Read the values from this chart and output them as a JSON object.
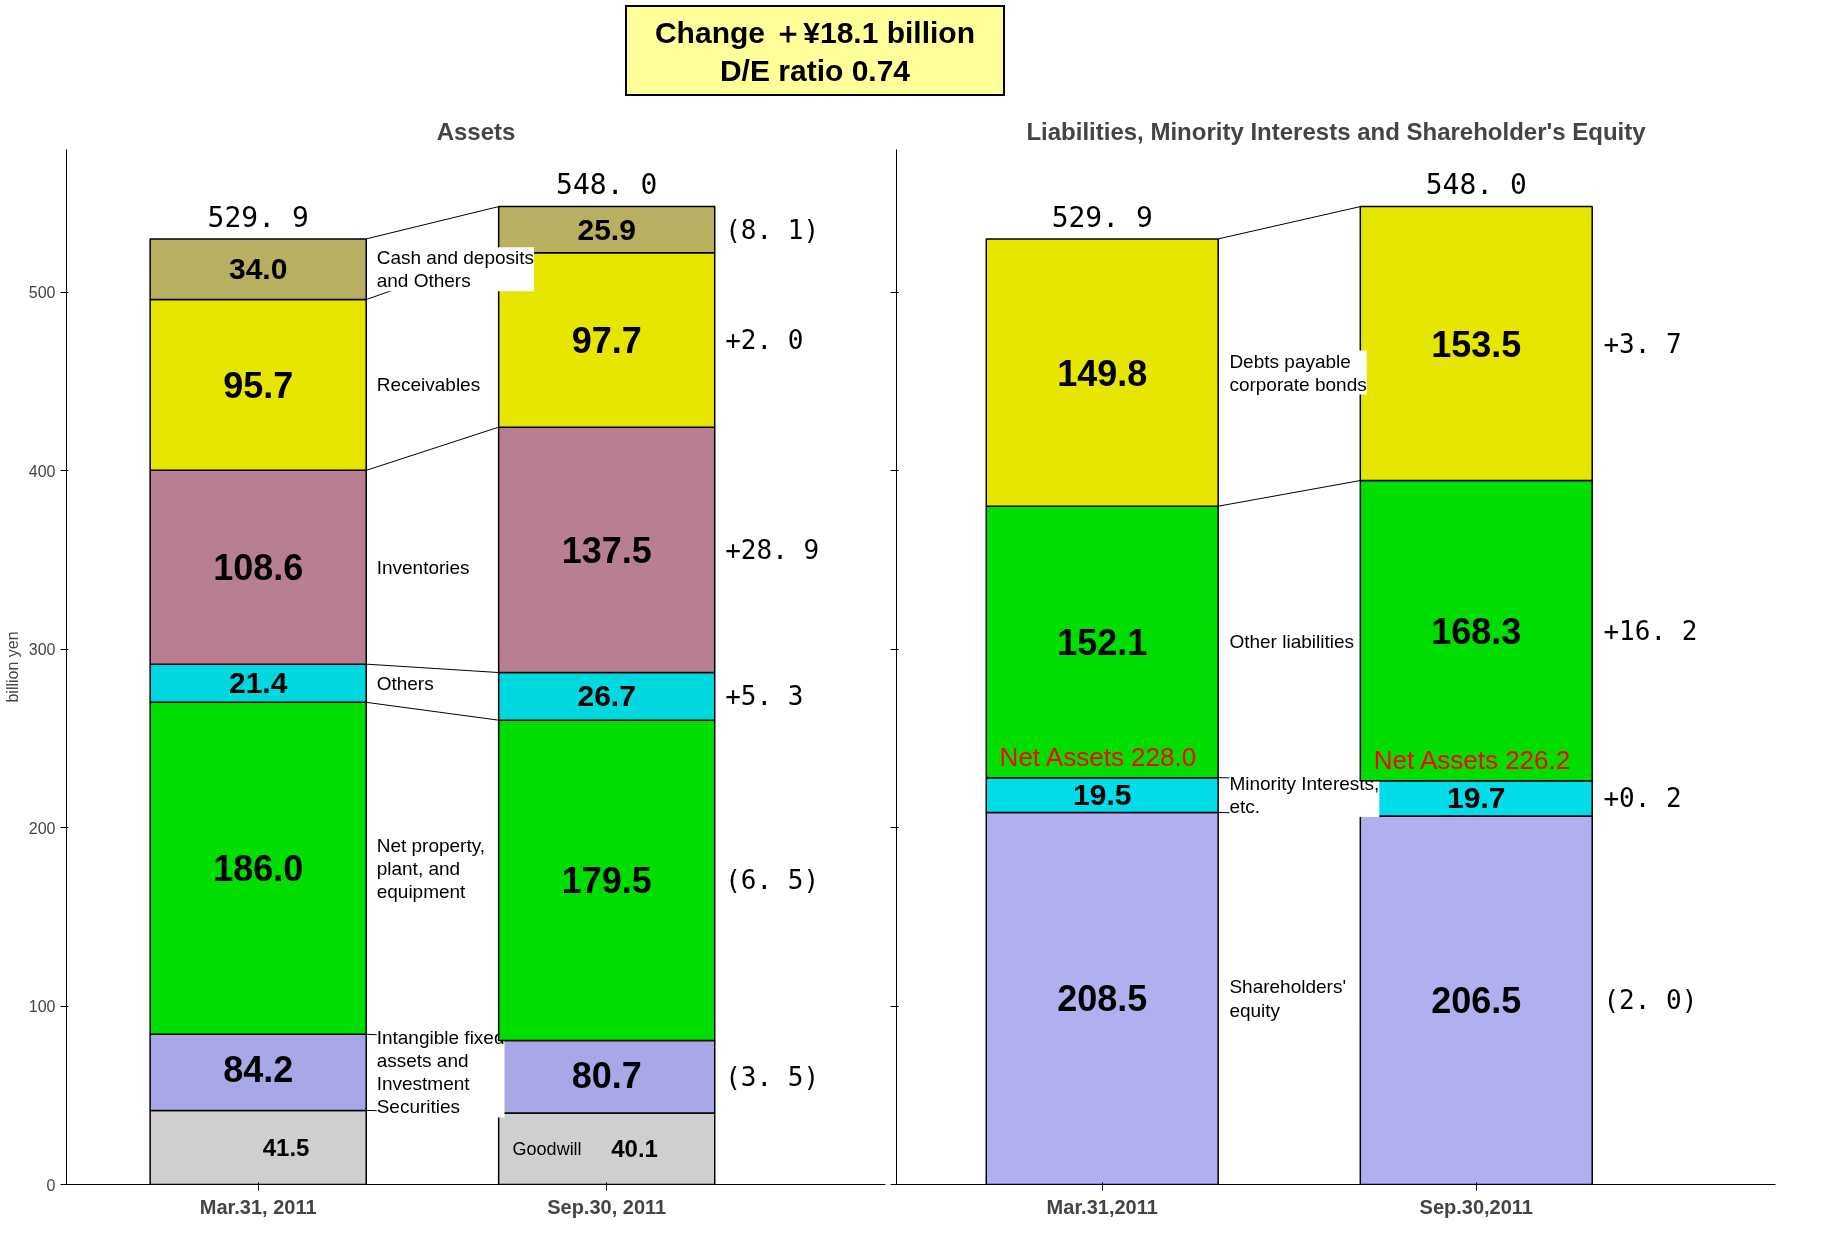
{
  "chart_data": [
    {
      "type": "bar",
      "stacked": true,
      "title": "Assets",
      "subtitle": "Change ＋¥18.1 billion\nD/E ratio 0.74",
      "ylabel": "billion yen",
      "categories": [
        "Mar.31, 2011",
        "Sep.30, 2011"
      ],
      "ylim": [
        0,
        580
      ],
      "yticks": [
        0,
        100,
        200,
        300,
        400,
        500
      ],
      "grid": false,
      "totals": [
        "529. 9",
        "548. 0"
      ],
      "series": [
        {
          "name": "Goodwill",
          "color": "#cfcfcf",
          "values": [
            41.5,
            40.1
          ],
          "value_labels": [
            "41.5",
            "40.1"
          ]
        },
        {
          "name": "Intangible fixed assets and Investment Securities",
          "color": "#a8a8e8",
          "values": [
            42.7,
            40.6
          ]
        },
        {
          "name": "Net property, plant, and equipment",
          "color": "#00dd00",
          "values": [
            186.0,
            179.5
          ],
          "value_labels": [
            "186.0",
            "179.5"
          ]
        },
        {
          "name": "Others",
          "color": "#00d8e0",
          "values": [
            21.4,
            26.7
          ],
          "value_labels": [
            "21.4",
            "26.7"
          ]
        },
        {
          "name": "Inventories",
          "color": "#b87f92",
          "values": [
            108.6,
            137.5
          ],
          "value_labels": [
            "108.6",
            "137.5"
          ]
        },
        {
          "name": "Receivables",
          "color": "#e6e600",
          "values": [
            95.7,
            97.7
          ],
          "value_labels": [
            "95.7",
            "97.7"
          ]
        },
        {
          "name": "Cash and deposits and Others",
          "color": "#b8b060",
          "values": [
            34.0,
            25.9
          ],
          "value_labels": [
            "34.0",
            "25.9"
          ]
        }
      ],
      "annotations": [
        {
          "text": "84.2",
          "x": "Mar.31, 2011",
          "y": 84.2
        },
        {
          "text": "80.7",
          "x": "Sep.30, 2011",
          "y": 80.7
        },
        "(8. 1)",
        "+2. 0",
        "+28. 9",
        "+5. 3",
        "(6. 5)",
        "(3. 5)"
      ]
    },
    {
      "type": "bar",
      "stacked": true,
      "title": "Liabilities, Minority Interests and Shareholder's Equity",
      "categories": [
        "Mar.31,2011",
        "Sep.30,2011"
      ],
      "ylim": [
        0,
        580
      ],
      "yticks": [
        0,
        100,
        200,
        300,
        400,
        500
      ],
      "tick_labels": "x",
      "grid": false,
      "totals": [
        "529. 9",
        "548. 0"
      ],
      "series": [
        {
          "name": "Shareholders' equity",
          "color": "#b0b0f0",
          "values": [
            208.5,
            206.5
          ],
          "value_labels": [
            "208.5",
            "206.5"
          ]
        },
        {
          "name": "Minority Interests, etc.",
          "color": "#00dde8",
          "values": [
            19.5,
            19.7
          ],
          "value_labels": [
            "19.5",
            "19.7"
          ]
        },
        {
          "name": "Other liabilities",
          "color": "#00dd00",
          "values": [
            152.1,
            168.3
          ],
          "value_labels": [
            "152.1",
            "168.3"
          ]
        },
        {
          "name": "Debts payable corporate bonds",
          "color": "#e6e600",
          "values": [
            149.8,
            153.5
          ],
          "value_labels": [
            "149.8",
            "153.5"
          ]
        }
      ],
      "annotations": [
        {
          "text": "Net Assets  228.0",
          "x": "Mar.31,2011",
          "y": 228.0
        },
        {
          "text": "Net Assets  226.2",
          "x": "Sep.30,2011",
          "y": 226.2
        },
        "+3. 7",
        "+16. 2",
        "+0. 2",
        "(2. 0)"
      ]
    }
  ]
}
